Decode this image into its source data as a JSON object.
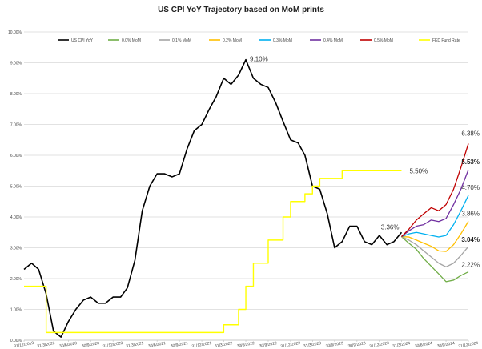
{
  "chart_data": {
    "type": "line",
    "title": "US CPI YoY Trajectory based on MoM prints",
    "ylim": [
      0,
      0.1
    ],
    "y_ticks": [
      "0.00%",
      "1.00%",
      "2.00%",
      "3.00%",
      "4.00%",
      "5.00%",
      "6.00%",
      "7.00%",
      "8.00%",
      "9.00%",
      "10.00%"
    ],
    "y_tick_values": [
      0,
      0.01,
      0.02,
      0.03,
      0.04,
      0.05,
      0.06,
      0.07,
      0.08,
      0.09,
      0.1
    ],
    "grid": true,
    "legend_position": "top",
    "x_ticks": [
      "31/12/2019",
      "31/3/2020",
      "30/6/2020",
      "30/9/2020",
      "31/12/2020",
      "31/3/2021",
      "30/6/2021",
      "30/9/2021",
      "31/12/2021",
      "31/3/2022",
      "30/6/2022",
      "30/9/2022",
      "31/12/2022",
      "31/3/2023",
      "30/6/2023",
      "30/9/2023",
      "31/12/2023",
      "31/3/2024",
      "30/6/2024",
      "30/9/2024",
      "31/12/2024"
    ],
    "x_tick_dates": [
      "2019-12-31",
      "2020-03-31",
      "2020-06-30",
      "2020-09-30",
      "2020-12-31",
      "2021-03-31",
      "2021-06-30",
      "2021-09-30",
      "2021-12-31",
      "2022-03-31",
      "2022-06-30",
      "2022-09-30",
      "2022-12-31",
      "2023-03-31",
      "2023-06-30",
      "2023-09-30",
      "2023-12-31",
      "2024-03-31",
      "2024-06-30",
      "2024-09-30",
      "2024-12-31"
    ],
    "series": [
      {
        "name": "US CPI YoY",
        "color": "#000000",
        "x": [
          "2019-12-31",
          "2020-01-31",
          "2020-02-29",
          "2020-03-31",
          "2020-04-30",
          "2020-05-31",
          "2020-06-30",
          "2020-07-31",
          "2020-08-31",
          "2020-09-30",
          "2020-10-31",
          "2020-11-30",
          "2020-12-31",
          "2021-01-31",
          "2021-02-28",
          "2021-03-31",
          "2021-04-30",
          "2021-05-31",
          "2021-06-30",
          "2021-07-31",
          "2021-08-31",
          "2021-09-30",
          "2021-10-31",
          "2021-11-30",
          "2021-12-31",
          "2022-01-31",
          "2022-02-28",
          "2022-03-31",
          "2022-04-30",
          "2022-05-31",
          "2022-06-30",
          "2022-07-31",
          "2022-08-31",
          "2022-09-30",
          "2022-10-31",
          "2022-11-30",
          "2022-12-31",
          "2023-01-31",
          "2023-02-28",
          "2023-03-31",
          "2023-04-30",
          "2023-05-31",
          "2023-06-30",
          "2023-07-31",
          "2023-08-31",
          "2023-09-30",
          "2023-10-31",
          "2023-11-30",
          "2023-12-31",
          "2024-01-31",
          "2024-02-29",
          "2024-03-31"
        ],
        "values": [
          0.023,
          0.025,
          0.023,
          0.015,
          0.003,
          0.001,
          0.006,
          0.01,
          0.013,
          0.014,
          0.012,
          0.012,
          0.014,
          0.014,
          0.017,
          0.026,
          0.042,
          0.05,
          0.054,
          0.054,
          0.053,
          0.054,
          0.062,
          0.068,
          0.07,
          0.075,
          0.079,
          0.085,
          0.083,
          0.086,
          0.091,
          0.085,
          0.083,
          0.082,
          0.077,
          0.071,
          0.065,
          0.064,
          0.06,
          0.05,
          0.049,
          0.041,
          0.03,
          0.032,
          0.037,
          0.037,
          0.032,
          0.031,
          0.034,
          0.031,
          0.032,
          0.035
        ]
      },
      {
        "name": "0.0% MoM",
        "color": "#70ad47",
        "x": [
          "2024-03-31",
          "2024-04-30",
          "2024-05-31",
          "2024-06-30",
          "2024-07-31",
          "2024-08-31",
          "2024-09-30",
          "2024-10-31",
          "2024-11-30",
          "2024-12-31"
        ],
        "values": [
          0.0336,
          0.0315,
          0.0295,
          0.0265,
          0.024,
          0.0215,
          0.019,
          0.0195,
          0.021,
          0.0222
        ]
      },
      {
        "name": "0.1% MoM",
        "color": "#a5a5a5",
        "x": [
          "2024-03-31",
          "2024-04-30",
          "2024-05-31",
          "2024-06-30",
          "2024-07-31",
          "2024-08-31",
          "2024-09-30",
          "2024-10-31",
          "2024-11-30",
          "2024-12-31"
        ],
        "values": [
          0.0336,
          0.0325,
          0.031,
          0.029,
          0.027,
          0.025,
          0.0238,
          0.025,
          0.0275,
          0.0304
        ]
      },
      {
        "name": "0.2% MoM",
        "color": "#ffc000",
        "x": [
          "2024-03-31",
          "2024-04-30",
          "2024-05-31",
          "2024-06-30",
          "2024-07-31",
          "2024-08-31",
          "2024-09-30",
          "2024-10-31",
          "2024-11-30",
          "2024-12-31"
        ],
        "values": [
          0.0336,
          0.0335,
          0.0325,
          0.0315,
          0.0305,
          0.029,
          0.0288,
          0.031,
          0.0345,
          0.0386
        ]
      },
      {
        "name": "0.3% MoM",
        "color": "#00b0f0",
        "x": [
          "2024-03-31",
          "2024-04-30",
          "2024-05-31",
          "2024-06-30",
          "2024-07-31",
          "2024-08-31",
          "2024-09-30",
          "2024-10-31",
          "2024-11-30",
          "2024-12-31"
        ],
        "values": [
          0.0336,
          0.0345,
          0.035,
          0.0345,
          0.034,
          0.0335,
          0.034,
          0.0375,
          0.042,
          0.047
        ]
      },
      {
        "name": "0.4% MoM",
        "color": "#7030a0",
        "x": [
          "2024-03-31",
          "2024-04-30",
          "2024-05-31",
          "2024-06-30",
          "2024-07-31",
          "2024-08-31",
          "2024-09-30",
          "2024-10-31",
          "2024-11-30",
          "2024-12-31"
        ],
        "values": [
          0.0336,
          0.0355,
          0.037,
          0.0375,
          0.039,
          0.0385,
          0.0395,
          0.044,
          0.049,
          0.0553
        ]
      },
      {
        "name": "0.5% MoM",
        "color": "#c00000",
        "x": [
          "2024-03-31",
          "2024-04-30",
          "2024-05-31",
          "2024-06-30",
          "2024-07-31",
          "2024-08-31",
          "2024-09-30",
          "2024-10-31",
          "2024-11-30",
          "2024-12-31"
        ],
        "values": [
          0.0336,
          0.036,
          0.039,
          0.041,
          0.043,
          0.042,
          0.044,
          0.049,
          0.056,
          0.0638
        ]
      },
      {
        "name": "FED Fund Rate",
        "color": "#ffff00",
        "x": [
          "2019-12-31",
          "2020-01-31",
          "2020-02-29",
          "2020-03-31",
          "2021-12-31",
          "2022-02-28",
          "2022-03-31",
          "2022-04-30",
          "2022-05-31",
          "2022-06-30",
          "2022-07-31",
          "2022-08-31",
          "2022-09-30",
          "2022-10-31",
          "2022-11-30",
          "2022-12-31",
          "2023-01-31",
          "2023-02-28",
          "2023-03-31",
          "2023-04-30",
          "2023-05-31",
          "2023-06-30",
          "2023-07-31",
          "2024-03-31"
        ],
        "values": [
          0.0175,
          0.0175,
          0.0175,
          0.0025,
          0.0025,
          0.0025,
          0.005,
          0.005,
          0.01,
          0.0175,
          0.025,
          0.025,
          0.0325,
          0.0325,
          0.04,
          0.045,
          0.045,
          0.0475,
          0.05,
          0.0525,
          0.0525,
          0.0525,
          0.055,
          0.055
        ],
        "step": true
      }
    ],
    "annotations": [
      {
        "text": "9.10%",
        "x": "2022-06-30",
        "y": 0.091,
        "bold": false
      },
      {
        "text": "3.36%",
        "x": "2024-03-31",
        "y": 0.0336,
        "bold": false
      },
      {
        "text": "5.50%",
        "x": "2024-03-31",
        "y": 0.055,
        "bold": false
      },
      {
        "text": "6.38%",
        "x": "2024-12-31",
        "y": 0.0638,
        "bold": false
      },
      {
        "text": "5.53%",
        "x": "2024-12-31",
        "y": 0.0553,
        "bold": true
      },
      {
        "text": "4.70%",
        "x": "2024-12-31",
        "y": 0.047,
        "bold": false
      },
      {
        "text": "3.86%",
        "x": "2024-12-31",
        "y": 0.0386,
        "bold": false
      },
      {
        "text": "3.04%",
        "x": "2024-12-31",
        "y": 0.0304,
        "bold": true
      },
      {
        "text": "2.22%",
        "x": "2024-12-31",
        "y": 0.0222,
        "bold": false
      }
    ]
  }
}
